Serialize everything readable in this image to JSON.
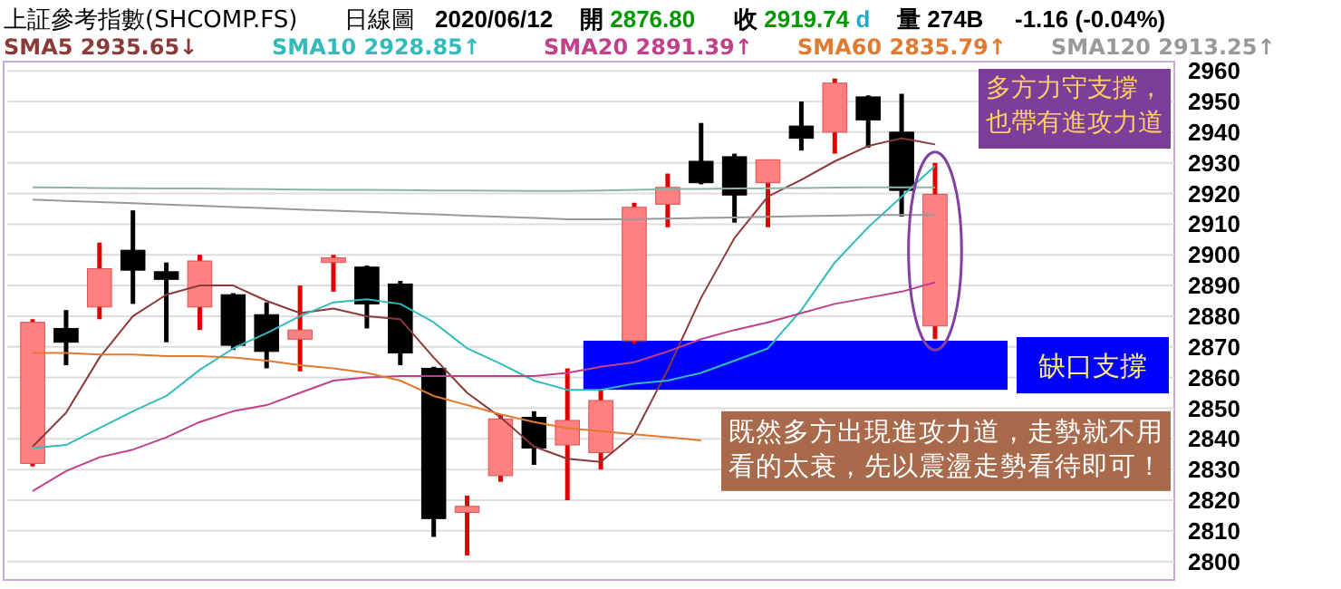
{
  "chart_data": {
    "type": "candlestick",
    "title": "上証參考指數(SHCOMP.FS)",
    "subtitle": "日線圖",
    "annotations": [
      "2020/06/12",
      "開 2876.80",
      "收 2919.74 d",
      "量 274B",
      "-1.16 (-0.04%)",
      "多方力守支撐，也帶有進攻力道",
      "既然多方出現進攻力道，走勢就不用看的太衰，先以震盪走勢看待即可！"
    ],
    "categories": [
      null,
      null,
      null,
      null,
      null,
      null,
      null,
      null,
      null,
      null,
      null,
      null,
      null,
      null,
      null,
      null,
      null,
      null,
      null,
      null,
      null,
      null,
      null,
      null,
      null,
      null,
      null,
      null
    ],
    "ohlc": [
      [
        2832,
        2879,
        2831,
        2878
      ],
      [
        2876,
        2882,
        2864,
        2871.5
      ],
      [
        2883,
        2904,
        2879,
        2895.5
      ],
      [
        2901.5,
        2914.5,
        2884,
        2895
      ],
      [
        2894.5,
        2897.5,
        2871.5,
        2892
      ],
      [
        2883,
        2900,
        2875.5,
        2898
      ],
      [
        2887,
        2887.5,
        2869,
        2870.5
      ],
      [
        2880.5,
        2884.5,
        2863,
        2868.5
      ],
      [
        2872.5,
        2890,
        2862,
        2875.5
      ],
      [
        2897.5,
        2900,
        2888,
        2899
      ],
      [
        2896,
        2896.5,
        2876,
        2884
      ],
      [
        2890.5,
        2891.5,
        2864,
        2868
      ],
      [
        2863,
        2863.5,
        2808,
        2814
      ],
      [
        2816,
        2821.5,
        2802,
        2818
      ],
      [
        2828,
        2848,
        2826,
        2846.5
      ],
      [
        2847,
        2849,
        2831.5,
        2837
      ],
      [
        2838,
        2863,
        2820,
        2846
      ],
      [
        2835.5,
        2856,
        2830,
        2852.5
      ],
      [
        2872,
        2917,
        2871,
        2915.5
      ],
      [
        2916.5,
        2926.5,
        2909,
        2922
      ],
      [
        2930.5,
        2943,
        2923,
        2923.5
      ],
      [
        2932,
        2933,
        2910.5,
        2919.5
      ],
      [
        2923.5,
        2931,
        2909,
        2931
      ],
      [
        2942,
        2950,
        2934,
        2938
      ],
      [
        2940,
        2957.5,
        2933,
        2956
      ],
      [
        2951.5,
        2952,
        2935,
        2944
      ],
      [
        2940,
        2952.5,
        2912.5,
        2921
      ],
      [
        2876.8,
        2930,
        2872.5,
        2919.74
      ]
    ],
    "series": [
      {
        "type": "line",
        "name": "SMA5 2935.65↓",
        "color": "#8b3a3a",
        "values": [
          2837.5,
          2848.5,
          2866.5,
          2880,
          2887,
          2890,
          2890,
          2885,
          2881,
          2882.5,
          2880,
          2879,
          2866.5,
          2855,
          2847,
          2837.5,
          2833.5,
          2832.5,
          2841.5,
          2862.5,
          2886,
          2905.5,
          2919,
          2924.5,
          2930.5,
          2935.5,
          2938,
          2936
        ]
      },
      {
        "type": "line",
        "name": "SMA10 2928.85↑",
        "color": "#33bbbb",
        "values": [
          2837,
          2838,
          2843.5,
          2849,
          2854,
          2862.5,
          2869.5,
          2874.5,
          2880,
          2884.5,
          2885.5,
          2884,
          2878,
          2869.5,
          2864.5,
          2859,
          2856,
          2856,
          2858,
          2859,
          2861.5,
          2865.5,
          2869.5,
          2882,
          2897.5,
          2909,
          2919,
          2929
        ]
      },
      {
        "type": "line",
        "name": "SMA20 2891.39↑",
        "color": "#c0408a",
        "values": [
          2823,
          2829.5,
          2834,
          2836.5,
          2840.5,
          2845.5,
          2849,
          2851,
          2855,
          2859,
          2860,
          2860.5,
          2860.5,
          2860.5,
          2860.5,
          2860.5,
          2861.5,
          2863.5,
          2865,
          2868.5,
          2872.5,
          2875.5,
          2878,
          2881,
          2884,
          2886,
          2888,
          2891
        ]
      },
      {
        "type": "line",
        "name": "SMA60 2835.79↑",
        "color": "#e07a30",
        "values": [
          2868,
          2868,
          2867.5,
          2867.5,
          2867,
          2867,
          2866.5,
          2865.5,
          2864,
          2863,
          2861.5,
          2859,
          2854,
          2851,
          2848,
          2845.5,
          2843.5,
          2842.5,
          2841.5,
          2840.5,
          2839.5,
          null,
          null,
          null,
          null,
          null,
          null,
          null
        ]
      },
      {
        "type": "line",
        "name": "SMA120 2913.25↑",
        "color": "#999999",
        "values": [
          2918,
          2917.6,
          2917.2,
          2916.8,
          2916.4,
          2916,
          2915.6,
          2915.2,
          2914.8,
          2914.4,
          2914,
          2913.6,
          2913.2,
          2912.8,
          2912.4,
          2912,
          2911.6,
          2911.6,
          2911.7,
          2911.8,
          2912,
          2912.2,
          2912.4,
          2912.6,
          2912.8,
          2913,
          2913,
          2913
        ]
      },
      {
        "type": "line",
        "color": "#8fb3a3",
        "values": [
          2922,
          2921.9,
          2921.8,
          2921.7,
          2921.6,
          2921.6,
          2921.5,
          2921.4,
          2921.3,
          2921.2,
          2921.2,
          2921.1,
          2921,
          2921,
          2920.9,
          2920.8,
          2920.8,
          2921,
          2921.2,
          2921.4,
          2921.5,
          2921.6,
          2921.7,
          2921.8,
          2921.9,
          2922,
          2922,
          2922
        ]
      }
    ],
    "bands": [
      {
        "axis": "y",
        "from": 2856,
        "to": 2872,
        "label": "缺口支撐",
        "color": "#0000ff"
      }
    ],
    "ylim": [
      2794,
      2963
    ],
    "yticks": [
      2800,
      2810,
      2820,
      2830,
      2840,
      2850,
      2860,
      2870,
      2880,
      2890,
      2900,
      2910,
      2920,
      2930,
      2940,
      2950,
      2960
    ],
    "grid": "y",
    "legend": "top",
    "tick_labels": "y"
  }
}
